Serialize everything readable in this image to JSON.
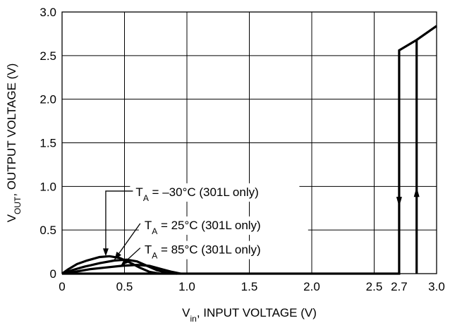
{
  "chart_data": {
    "type": "line",
    "xlabel_parts": [
      "V",
      "in",
      ", INPUT VOLTAGE (V)"
    ],
    "ylabel_parts": [
      "V",
      "OUT",
      ", OUTPUT VOLTAGE (V)"
    ],
    "xlim": [
      0,
      3.0
    ],
    "ylim": [
      0,
      3.0
    ],
    "x_ticks": [
      {
        "value": 0,
        "label": "0"
      },
      {
        "value": 0.5,
        "label": "0.5"
      },
      {
        "value": 1.0,
        "label": "1.0"
      },
      {
        "value": 1.5,
        "label": "1.5"
      },
      {
        "value": 2.0,
        "label": "2.0"
      },
      {
        "value": 2.5,
        "label": "2.5"
      },
      {
        "value": 2.7,
        "label": "2.7"
      },
      {
        "value": 3.0,
        "label": "3.0"
      }
    ],
    "y_ticks": [
      {
        "value": 0,
        "label": "0"
      },
      {
        "value": 0.5,
        "label": "0.5"
      },
      {
        "value": 1.0,
        "label": "1.0"
      },
      {
        "value": 1.5,
        "label": "1.5"
      },
      {
        "value": 2.0,
        "label": "2.0"
      },
      {
        "value": 2.5,
        "label": "2.5"
      },
      {
        "value": 3.0,
        "label": "3.0"
      }
    ],
    "x_grid": [
      0,
      0.5,
      1.0,
      1.5,
      2.0,
      2.5,
      3.0
    ],
    "y_grid": [
      0,
      0.5,
      1.0,
      1.5,
      2.0,
      2.5,
      3.0
    ],
    "grid": true,
    "series": [
      {
        "points": [
          [
            0,
            0
          ],
          [
            2.7,
            0
          ],
          [
            2.7,
            2.56
          ],
          [
            2.84,
            2.68
          ],
          [
            3.0,
            2.84
          ]
        ]
      },
      {
        "points": [
          [
            2.84,
            0
          ],
          [
            2.84,
            2.68
          ]
        ]
      },
      {
        "points": [
          [
            0,
            0
          ],
          [
            0.05,
            0.05
          ],
          [
            0.12,
            0.11
          ],
          [
            0.2,
            0.15
          ],
          [
            0.3,
            0.19
          ],
          [
            0.38,
            0.2
          ],
          [
            0.46,
            0.18
          ],
          [
            0.54,
            0.13
          ],
          [
            0.62,
            0.07
          ],
          [
            0.7,
            0.02
          ],
          [
            0.78,
            0
          ]
        ]
      },
      {
        "points": [
          [
            0,
            0
          ],
          [
            0.08,
            0.04
          ],
          [
            0.18,
            0.08
          ],
          [
            0.3,
            0.12
          ],
          [
            0.42,
            0.15
          ],
          [
            0.52,
            0.16
          ],
          [
            0.6,
            0.14
          ],
          [
            0.68,
            0.09
          ],
          [
            0.76,
            0.04
          ],
          [
            0.84,
            0.01
          ],
          [
            0.92,
            0
          ]
        ]
      },
      {
        "points": [
          [
            0,
            0
          ],
          [
            0.1,
            0.02
          ],
          [
            0.22,
            0.05
          ],
          [
            0.35,
            0.07
          ],
          [
            0.48,
            0.09
          ],
          [
            0.6,
            0.1
          ],
          [
            0.7,
            0.09
          ],
          [
            0.8,
            0.05
          ],
          [
            0.88,
            0.02
          ],
          [
            0.95,
            0
          ]
        ]
      }
    ],
    "direction_arrows": [
      {
        "x": 2.7,
        "y": 0.8,
        "direction": "down"
      },
      {
        "x": 2.84,
        "y": 0.96,
        "direction": "up"
      }
    ],
    "annotations": [
      {
        "parts": [
          "T",
          "A",
          " = –30°C (301L only)"
        ],
        "text_x": 0.59,
        "text_y": 0.89,
        "target_x": 0.35,
        "target_y": 0.2,
        "elbow_x": 0.35
      },
      {
        "parts": [
          "T",
          "A",
          " = 25°C (301L only)"
        ],
        "text_x": 0.66,
        "text_y": 0.51,
        "target_x": 0.42,
        "target_y": 0.16
      },
      {
        "parts": [
          "T",
          "A",
          " = 85°C (301L only)"
        ],
        "text_x": 0.66,
        "text_y": 0.23,
        "target_x": 0.47,
        "target_y": 0.09
      }
    ]
  }
}
